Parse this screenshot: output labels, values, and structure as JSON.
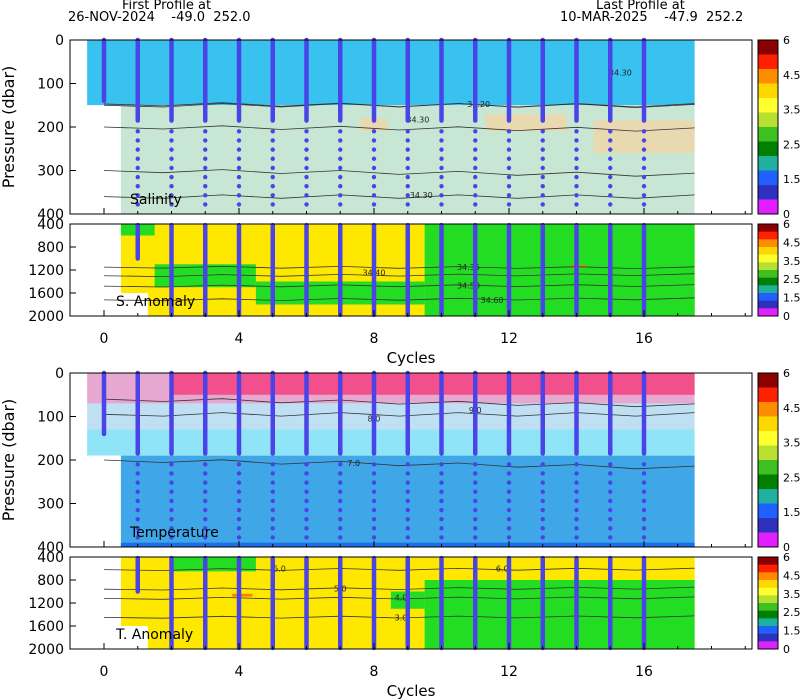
{
  "header": {
    "first_profile_label": "First Profile at",
    "first_profile_line": "26-NOV-2024    -49.0  252.0",
    "last_profile_label": "Last Profile at",
    "last_profile_line": "10-MAR-2025    -47.9  252.2"
  },
  "colorbar": {
    "ticks": [
      "6",
      "4.5",
      "3.5",
      "2.5",
      "1.5",
      "0"
    ],
    "colors": [
      "#8b0000",
      "#ff2000",
      "#ff8c00",
      "#ffd700",
      "#ffff30",
      "#b8e030",
      "#40c020",
      "#008000",
      "#20b0a0",
      "#2060ff",
      "#3030c0",
      "#e020ff"
    ]
  },
  "chart_data": [
    {
      "type": "heatmap",
      "name": "Salinity",
      "panel_label": "Salinity",
      "ylabel": "Pressure (dbar)",
      "ylim": [
        400,
        0
      ],
      "yticks": [
        "0",
        "100",
        "200",
        "300",
        "400"
      ],
      "xlim": [
        -1.5,
        18.5
      ],
      "grid": false,
      "profiles_x": [
        0,
        1,
        2,
        3,
        4,
        5,
        6,
        7,
        8,
        9,
        10,
        11,
        12,
        13,
        14,
        15,
        16
      ],
      "contour_labels": [
        {
          "text": "34.20",
          "x": 11.1,
          "y": 147
        },
        {
          "text": "34.30",
          "x": 9.3,
          "y": 183
        },
        {
          "text": "34.30",
          "x": 9.4,
          "y": 356
        },
        {
          "text": "34.30",
          "x": 15.3,
          "y": 75
        }
      ],
      "colors": {
        "upper": "#39c2f0",
        "lower": "#c8e6d4",
        "patch": "#e8d9b0"
      }
    },
    {
      "type": "heatmap",
      "name": "S. Anomaly",
      "panel_label": "S. Anomaly",
      "ylim": [
        2000,
        400
      ],
      "yticks": [
        "400",
        "800",
        "1200",
        "1600",
        "2000"
      ],
      "xlim": [
        -1.5,
        18.5
      ],
      "contour_labels": [
        {
          "text": "34.35",
          "x": 10.8,
          "y": 1150
        },
        {
          "text": "34.40",
          "x": 8.0,
          "y": 1240
        },
        {
          "text": "34.50",
          "x": 10.8,
          "y": 1470
        },
        {
          "text": "34.60",
          "x": 11.5,
          "y": 1720
        }
      ],
      "colors": {
        "yellow": "#ffe800",
        "green": "#22dd22",
        "orange": "#ff7f00"
      }
    },
    {
      "type": "heatmap",
      "name": "Temperature",
      "panel_label": "Temperature",
      "ylabel": "Pressure (dbar)",
      "ylim": [
        400,
        0
      ],
      "yticks": [
        "0",
        "100",
        "200",
        "300",
        "400"
      ],
      "xlim": [
        -1.5,
        18.5
      ],
      "contour_labels": [
        {
          "text": "8.0",
          "x": 8.0,
          "y": 105
        },
        {
          "text": "9.0",
          "x": 11.0,
          "y": 85
        },
        {
          "text": "7.0",
          "x": 7.4,
          "y": 207
        }
      ],
      "colors": {
        "surface": "#f2508c",
        "mixed": "#e6a8d0",
        "upper": "#bfe0f2",
        "mid": "#90e4f7",
        "deep": "#3fa6e8"
      }
    },
    {
      "type": "heatmap",
      "name": "T. Anomaly",
      "panel_label": "T. Anomaly",
      "xlabel": "Cycles",
      "ylim": [
        2000,
        400
      ],
      "yticks": [
        "400",
        "800",
        "1200",
        "1600",
        "2000"
      ],
      "xlim": [
        -1.5,
        18.5
      ],
      "xticks": [
        0,
        4,
        8,
        12,
        16
      ],
      "contour_labels": [
        {
          "text": "6.0",
          "x": 5.2,
          "y": 600
        },
        {
          "text": "5.0",
          "x": 7.0,
          "y": 950
        },
        {
          "text": "4.0",
          "x": 8.8,
          "y": 1100
        },
        {
          "text": "3.0",
          "x": 8.8,
          "y": 1450
        },
        {
          "text": "6.0",
          "x": 11.8,
          "y": 600
        }
      ],
      "colors": {
        "yellow": "#ffe800",
        "green": "#22dd22",
        "orange": "#ff7f00"
      }
    }
  ],
  "xlabel_top": "Cycles",
  "xlabel_bottom": "Cycles"
}
